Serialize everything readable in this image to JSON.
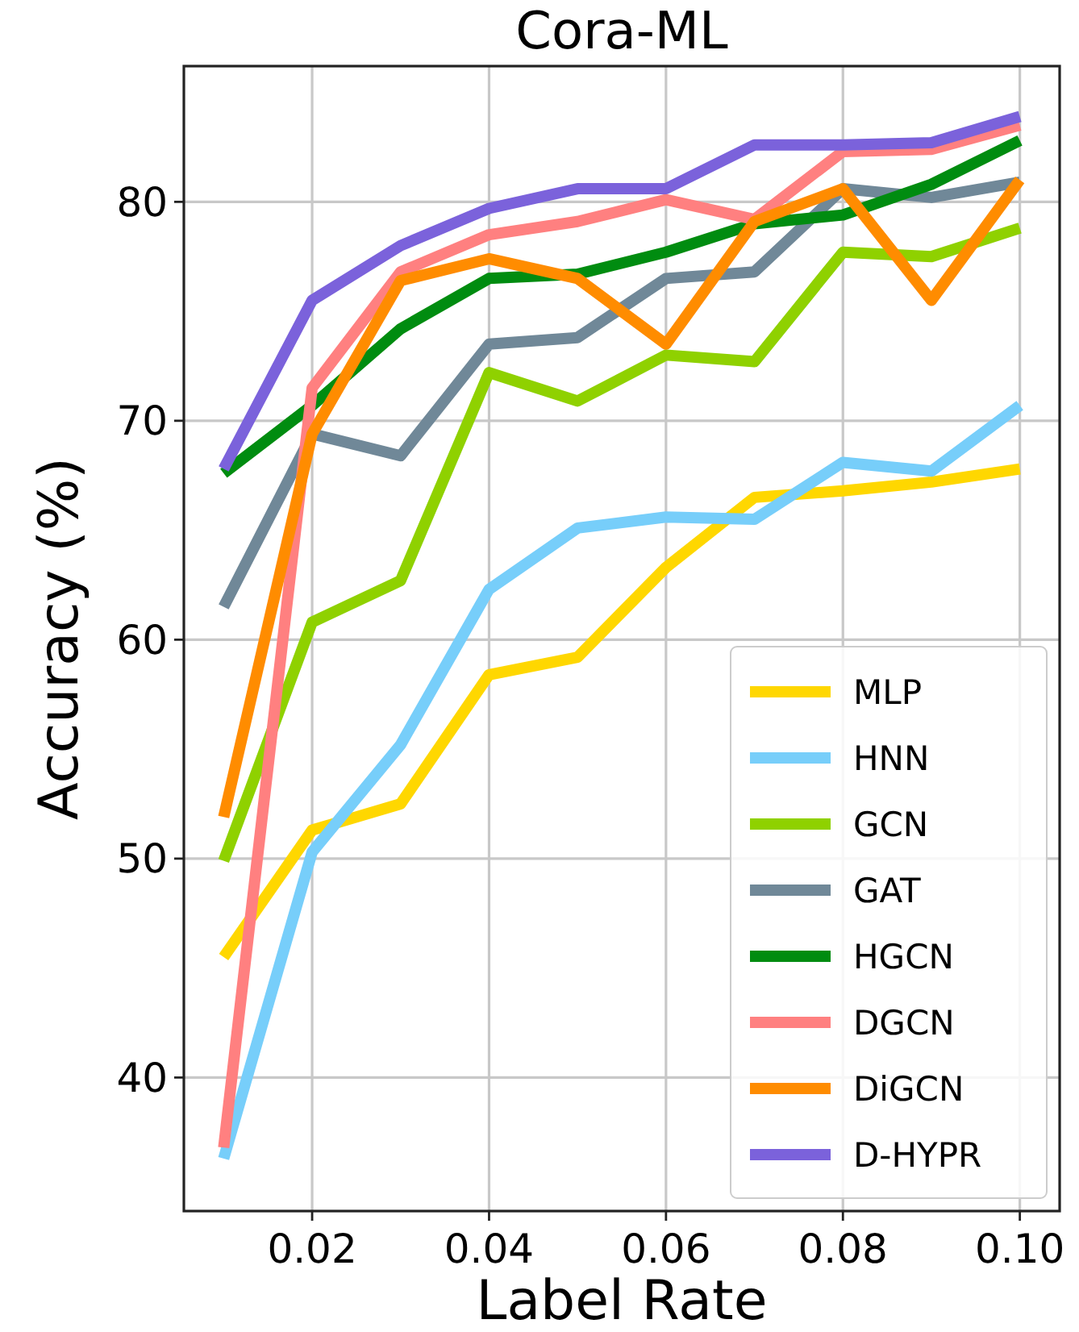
{
  "chart_data": {
    "type": "line",
    "title": "Cora-ML",
    "xlabel": "Label Rate",
    "ylabel": "Accuracy (%)",
    "x": [
      0.01,
      0.02,
      0.03,
      0.04,
      0.05,
      0.06,
      0.07,
      0.08,
      0.09,
      0.1
    ],
    "xlim": [
      0.0055,
      0.1045
    ],
    "xticks": [
      {
        "value": 0.02,
        "label": "0.02"
      },
      {
        "value": 0.04,
        "label": "0.04"
      },
      {
        "value": 0.06,
        "label": "0.06"
      },
      {
        "value": 0.08,
        "label": "0.08"
      },
      {
        "value": 0.1,
        "label": "0.10"
      }
    ],
    "ylim": [
      33.9,
      86.2
    ],
    "yticks": [
      40,
      50,
      60,
      70,
      80
    ],
    "grid": true,
    "legend": "bottom right",
    "line_style": "solid",
    "marker": "none",
    "series": [
      {
        "name": "MLP",
        "color": "#ffd700",
        "values": [
          45.5,
          51.3,
          52.5,
          58.4,
          59.2,
          63.3,
          66.5,
          66.8,
          67.2,
          67.8
        ]
      },
      {
        "name": "HNN",
        "color": "#77cefa",
        "values": [
          36.3,
          50.3,
          55.2,
          62.3,
          65.1,
          65.6,
          65.5,
          68.1,
          67.7,
          70.7
        ]
      },
      {
        "name": "GCN",
        "color": "#8fd100",
        "values": [
          49.9,
          60.8,
          62.7,
          72.2,
          70.9,
          73.0,
          72.7,
          77.7,
          77.5,
          78.8
        ]
      },
      {
        "name": "GAT",
        "color": "#708898",
        "values": [
          61.5,
          69.4,
          68.4,
          73.5,
          73.8,
          76.5,
          76.8,
          80.6,
          80.2,
          80.9
        ]
      },
      {
        "name": "HGCN",
        "color": "#008c10",
        "values": [
          67.6,
          70.7,
          74.2,
          76.5,
          76.7,
          77.7,
          79.0,
          79.4,
          80.8,
          82.8
        ]
      },
      {
        "name": "DGCN",
        "color": "#ff8080",
        "values": [
          36.8,
          71.5,
          76.8,
          78.5,
          79.1,
          80.1,
          79.2,
          82.3,
          82.4,
          83.5
        ]
      },
      {
        "name": "DiGCN",
        "color": "#ff8c00",
        "values": [
          51.9,
          69.4,
          76.4,
          77.4,
          76.5,
          73.5,
          79.1,
          80.6,
          75.5,
          81.0
        ]
      },
      {
        "name": "D-HYPR",
        "color": "#7b62db",
        "values": [
          67.8,
          75.5,
          78.0,
          79.7,
          80.6,
          80.6,
          82.6,
          82.6,
          82.7,
          83.9
        ]
      }
    ]
  }
}
